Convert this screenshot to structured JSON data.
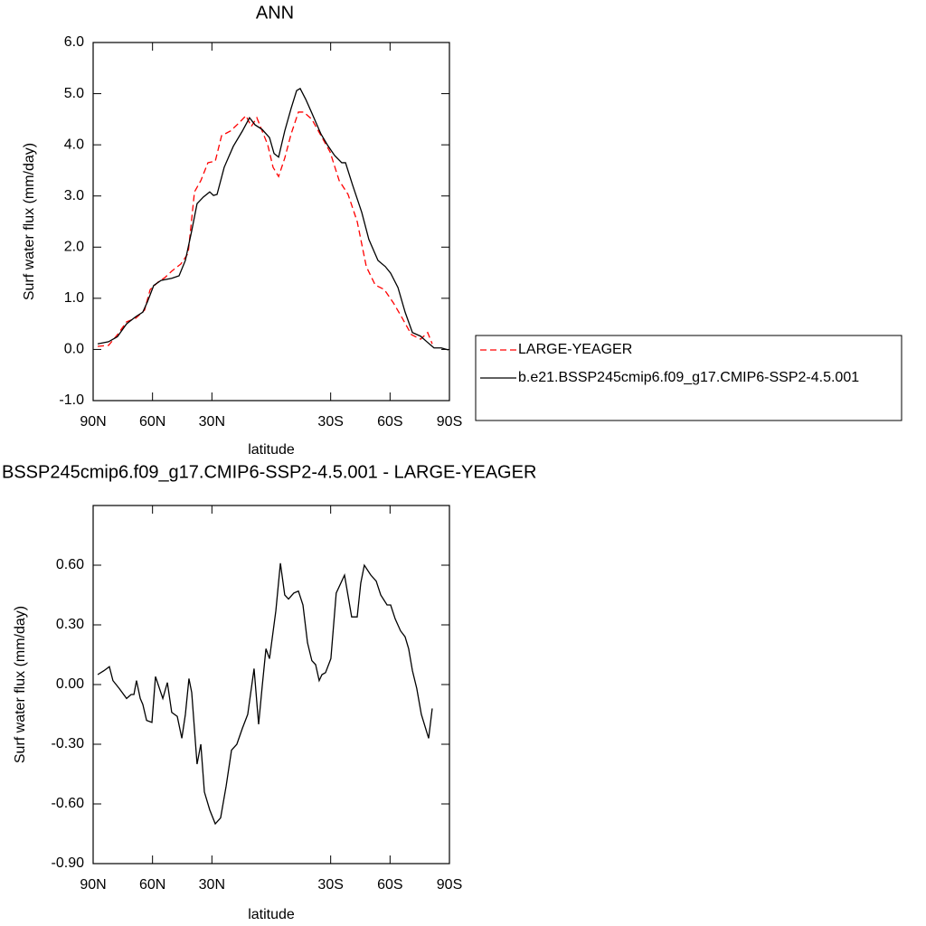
{
  "chart_data": [
    {
      "type": "line",
      "title": "ANN",
      "xlabel": "latitude",
      "ylabel": "Surf water flux (mm/day)",
      "xlim": [
        90,
        -90
      ],
      "xticks": [
        {
          "value": 90,
          "label": "90N"
        },
        {
          "value": 60,
          "label": "60N"
        },
        {
          "value": 30,
          "label": "30N"
        },
        {
          "value": -30,
          "label": "30S"
        },
        {
          "value": -60,
          "label": "60S"
        },
        {
          "value": -90,
          "label": "90S"
        }
      ],
      "ylim": [
        -1,
        6
      ],
      "yticks": [
        {
          "value": -1,
          "label": "-1.0"
        },
        {
          "value": 0,
          "label": "0.0"
        },
        {
          "value": 1,
          "label": "1.0"
        },
        {
          "value": 2,
          "label": "2.0"
        },
        {
          "value": 3,
          "label": "3.0"
        },
        {
          "value": 4,
          "label": "4.0"
        },
        {
          "value": 5,
          "label": "5.0"
        },
        {
          "value": 6,
          "label": "6.0"
        }
      ],
      "legend": "right",
      "series": [
        {
          "name": "LARGE-YEAGER",
          "color": "#ff0000",
          "dashed": true,
          "x": [
            87.7,
            82.2,
            77.7,
            73.1,
            68.5,
            64.0,
            61.2,
            57.1,
            53.9,
            50.3,
            45.7,
            42.0,
            38.8,
            35.6,
            32.0,
            28.3,
            25.1,
            20.6,
            16.0,
            12.8,
            10.1,
            7.3,
            4.6,
            1.8,
            -0.9,
            -3.7,
            -6.8,
            -10.0,
            -13.7,
            -16.4,
            -20.5,
            -25.1,
            -29.7,
            -34.3,
            -38.8,
            -43.4,
            -48.0,
            -52.5,
            -57.1,
            -61.7,
            -66.2,
            -70.8,
            -75.4,
            -79.0,
            -81.3
          ],
          "values": [
            0.06,
            0.08,
            0.29,
            0.54,
            0.61,
            0.77,
            1.17,
            1.32,
            1.4,
            1.53,
            1.67,
            1.88,
            3.08,
            3.3,
            3.65,
            3.68,
            4.18,
            4.27,
            4.44,
            4.57,
            4.36,
            4.53,
            4.27,
            4.0,
            3.56,
            3.38,
            3.74,
            4.21,
            4.64,
            4.64,
            4.5,
            4.18,
            3.86,
            3.3,
            3.03,
            2.5,
            1.62,
            1.26,
            1.17,
            0.91,
            0.61,
            0.29,
            0.2,
            0.33,
            0.11
          ]
        },
        {
          "name": "b.e21.BSSP245cmip6.f09_g17.CMIP6-SSP2-4.5.001",
          "color": "#000000",
          "dashed": false,
          "x": [
            87.7,
            82.2,
            77.7,
            73.1,
            68.5,
            64.9,
            62.6,
            59.4,
            55.7,
            50.3,
            46.6,
            43.4,
            40.2,
            37.5,
            34.3,
            31.1,
            29.2,
            27.4,
            23.8,
            19.2,
            14.6,
            11.0,
            8.2,
            4.6,
            0.9,
            -1.4,
            -3.7,
            -6.8,
            -10.0,
            -12.8,
            -14.6,
            -17.4,
            -20.5,
            -25.1,
            -28.3,
            -32.0,
            -35.6,
            -37.5,
            -41.1,
            -45.7,
            -49.3,
            -53.9,
            -57.6,
            -60.3,
            -64.0,
            -67.6,
            -71.3,
            -75.4,
            -78.6,
            -82.2,
            -85.9,
            -89.5
          ],
          "values": [
            0.11,
            0.15,
            0.25,
            0.5,
            0.64,
            0.73,
            0.93,
            1.25,
            1.35,
            1.39,
            1.44,
            1.74,
            2.32,
            2.85,
            2.98,
            3.08,
            3.01,
            3.03,
            3.56,
            3.97,
            4.27,
            4.53,
            4.39,
            4.3,
            4.14,
            3.83,
            3.76,
            4.27,
            4.71,
            5.06,
            5.1,
            4.89,
            4.62,
            4.21,
            4.0,
            3.79,
            3.65,
            3.65,
            3.21,
            2.68,
            2.15,
            1.74,
            1.62,
            1.49,
            1.21,
            0.73,
            0.33,
            0.26,
            0.15,
            0.03,
            0.03,
            -0.01
          ]
        }
      ]
    },
    {
      "type": "line",
      "title": "BSSP245cmip6.f09_g17.CMIP6-SSP2-4.5.001 - LARGE-YEAGER",
      "xlabel": "latitude",
      "ylabel": "Surf water flux (mm/day)",
      "xlim": [
        90,
        -90
      ],
      "xticks": [
        {
          "value": 90,
          "label": "90N"
        },
        {
          "value": 60,
          "label": "60N"
        },
        {
          "value": 30,
          "label": "30N"
        },
        {
          "value": -30,
          "label": "30S"
        },
        {
          "value": -60,
          "label": "60S"
        },
        {
          "value": -90,
          "label": "90S"
        }
      ],
      "ylim": [
        -0.9,
        0.9
      ],
      "yticks": [
        {
          "value": -0.9,
          "label": "-0.90"
        },
        {
          "value": -0.6,
          "label": "-0.60"
        },
        {
          "value": -0.3,
          "label": "-0.30"
        },
        {
          "value": 0,
          "label": "0.00"
        },
        {
          "value": 0.3,
          "label": "0.30"
        },
        {
          "value": 0.6,
          "label": "0.60"
        }
      ],
      "color": "#000000",
      "x": [
        87.7,
        84.5,
        81.8,
        80.0,
        76.8,
        73.1,
        70.8,
        69.4,
        68.1,
        66.2,
        64.9,
        63.0,
        60.3,
        58.5,
        54.8,
        52.5,
        50.3,
        47.5,
        45.2,
        43.4,
        41.6,
        40.2,
        37.5,
        35.6,
        33.8,
        31.1,
        28.3,
        25.6,
        22.8,
        20.1,
        17.4,
        14.6,
        11.9,
        8.7,
        6.4,
        4.6,
        2.7,
        0.9,
        -2.3,
        -4.6,
        -6.8,
        -8.7,
        -11.4,
        -13.7,
        -16.0,
        -18.3,
        -20.5,
        -22.4,
        -24.2,
        -25.6,
        -27.4,
        -30.1,
        -32.8,
        -37.0,
        -40.6,
        -43.4,
        -45.2,
        -47.0,
        -50.3,
        -53.0,
        -55.3,
        -58.5,
        -60.3,
        -62.6,
        -65.3,
        -67.6,
        -69.4,
        -71.3,
        -73.5,
        -75.8,
        -79.5,
        -81.3
      ],
      "values": [
        0.05,
        0.07,
        0.09,
        0.02,
        -0.02,
        -0.07,
        -0.05,
        -0.05,
        0.02,
        -0.07,
        -0.1,
        -0.18,
        -0.19,
        0.04,
        -0.07,
        0.01,
        -0.14,
        -0.16,
        -0.27,
        -0.15,
        0.03,
        -0.04,
        -0.4,
        -0.3,
        -0.54,
        -0.63,
        -0.7,
        -0.67,
        -0.51,
        -0.33,
        -0.3,
        -0.22,
        -0.15,
        0.08,
        -0.2,
        -0.01,
        0.18,
        0.13,
        0.37,
        0.61,
        0.45,
        0.43,
        0.46,
        0.47,
        0.4,
        0.21,
        0.12,
        0.1,
        0.02,
        0.05,
        0.06,
        0.13,
        0.46,
        0.55,
        0.34,
        0.34,
        0.51,
        0.6,
        0.55,
        0.52,
        0.45,
        0.4,
        0.4,
        0.33,
        0.27,
        0.24,
        0.18,
        0.07,
        -0.02,
        -0.15,
        -0.27,
        -0.12
      ]
    }
  ]
}
